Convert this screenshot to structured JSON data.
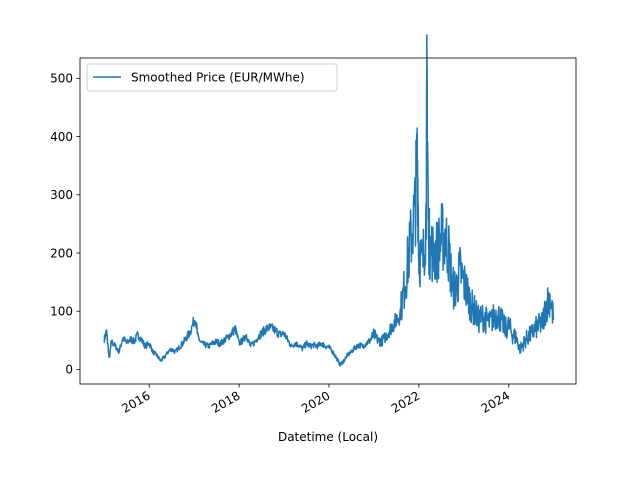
{
  "chart_data": {
    "type": "line",
    "xlabel": "Datetime (Local)",
    "ylabel": "",
    "x_ticks": [
      "2016",
      "2018",
      "2020",
      "2022",
      "2024"
    ],
    "y_ticks": [
      "0",
      "100",
      "200",
      "300",
      "400",
      "500"
    ],
    "xlim": [
      "2014-06-18",
      "2025-07-01"
    ],
    "ylim": [
      -25,
      535
    ],
    "legend_position": "top-left",
    "grid": false,
    "series": [
      {
        "name": "Smoothed Price (EUR/MWhe)",
        "color": "#1f77b4",
        "points": [
          [
            "2015-01-01",
            52
          ],
          [
            "2015-01-20",
            65
          ],
          [
            "2015-02-10",
            18
          ],
          [
            "2015-03-01",
            48
          ],
          [
            "2015-04-01",
            40
          ],
          [
            "2015-05-01",
            30
          ],
          [
            "2015-06-01",
            55
          ],
          [
            "2015-07-01",
            45
          ],
          [
            "2015-08-01",
            52
          ],
          [
            "2015-09-01",
            48
          ],
          [
            "2015-10-01",
            60
          ],
          [
            "2015-11-01",
            50
          ],
          [
            "2015-12-01",
            40
          ],
          [
            "2016-01-01",
            45
          ],
          [
            "2016-02-01",
            30
          ],
          [
            "2016-03-01",
            25
          ],
          [
            "2016-04-01",
            15
          ],
          [
            "2016-05-01",
            20
          ],
          [
            "2016-06-01",
            30
          ],
          [
            "2016-07-01",
            35
          ],
          [
            "2016-08-01",
            30
          ],
          [
            "2016-09-01",
            38
          ],
          [
            "2016-10-01",
            45
          ],
          [
            "2016-11-01",
            55
          ],
          [
            "2016-12-01",
            65
          ],
          [
            "2017-01-10",
            90
          ],
          [
            "2017-02-01",
            55
          ],
          [
            "2017-03-01",
            45
          ],
          [
            "2017-04-01",
            42
          ],
          [
            "2017-05-01",
            40
          ],
          [
            "2017-06-01",
            45
          ],
          [
            "2017-07-01",
            48
          ],
          [
            "2017-08-01",
            44
          ],
          [
            "2017-09-01",
            50
          ],
          [
            "2017-10-01",
            55
          ],
          [
            "2017-11-01",
            62
          ],
          [
            "2017-12-01",
            70
          ],
          [
            "2018-01-01",
            45
          ],
          [
            "2018-02-01",
            50
          ],
          [
            "2018-03-01",
            60
          ],
          [
            "2018-04-01",
            40
          ],
          [
            "2018-05-01",
            45
          ],
          [
            "2018-06-01",
            55
          ],
          [
            "2018-07-01",
            62
          ],
          [
            "2018-08-01",
            68
          ],
          [
            "2018-09-01",
            72
          ],
          [
            "2018-10-01",
            70
          ],
          [
            "2018-11-01",
            65
          ],
          [
            "2018-12-01",
            60
          ],
          [
            "2019-01-01",
            62
          ],
          [
            "2019-02-01",
            50
          ],
          [
            "2019-03-01",
            40
          ],
          [
            "2019-04-01",
            45
          ],
          [
            "2019-05-01",
            42
          ],
          [
            "2019-06-01",
            35
          ],
          [
            "2019-07-01",
            45
          ],
          [
            "2019-08-01",
            40
          ],
          [
            "2019-09-01",
            42
          ],
          [
            "2019-10-01",
            40
          ],
          [
            "2019-11-01",
            45
          ],
          [
            "2019-12-01",
            40
          ],
          [
            "2020-01-01",
            38
          ],
          [
            "2020-02-01",
            30
          ],
          [
            "2020-03-01",
            20
          ],
          [
            "2020-04-01",
            8
          ],
          [
            "2020-05-01",
            15
          ],
          [
            "2020-06-01",
            25
          ],
          [
            "2020-07-01",
            30
          ],
          [
            "2020-08-01",
            38
          ],
          [
            "2020-09-01",
            42
          ],
          [
            "2020-10-01",
            40
          ],
          [
            "2020-11-01",
            45
          ],
          [
            "2020-12-01",
            50
          ],
          [
            "2021-01-01",
            60
          ],
          [
            "2021-02-01",
            50
          ],
          [
            "2021-03-01",
            48
          ],
          [
            "2021-04-01",
            55
          ],
          [
            "2021-05-01",
            65
          ],
          [
            "2021-06-01",
            75
          ],
          [
            "2021-07-01",
            85
          ],
          [
            "2021-08-01",
            95
          ],
          [
            "2021-09-01",
            135
          ],
          [
            "2021-10-01",
            180
          ],
          [
            "2021-11-01",
            230
          ],
          [
            "2021-12-01",
            275
          ],
          [
            "2021-12-20",
            370
          ],
          [
            "2022-01-01",
            200
          ],
          [
            "2022-02-01",
            180
          ],
          [
            "2022-03-01",
            260
          ],
          [
            "2022-03-08",
            510
          ],
          [
            "2022-03-20",
            230
          ],
          [
            "2022-04-01",
            210
          ],
          [
            "2022-05-01",
            200
          ],
          [
            "2022-06-01",
            205
          ],
          [
            "2022-07-01",
            225
          ],
          [
            "2022-08-01",
            230
          ],
          [
            "2022-09-01",
            200
          ],
          [
            "2022-10-01",
            140
          ],
          [
            "2022-11-01",
            140
          ],
          [
            "2022-12-01",
            170
          ],
          [
            "2023-01-01",
            150
          ],
          [
            "2023-02-01",
            130
          ],
          [
            "2023-03-01",
            110
          ],
          [
            "2023-04-01",
            100
          ],
          [
            "2023-05-01",
            85
          ],
          [
            "2023-06-01",
            90
          ],
          [
            "2023-07-01",
            85
          ],
          [
            "2023-08-01",
            80
          ],
          [
            "2023-09-01",
            90
          ],
          [
            "2023-10-01",
            95
          ],
          [
            "2023-11-01",
            85
          ],
          [
            "2023-12-01",
            70
          ],
          [
            "2024-01-01",
            75
          ],
          [
            "2024-02-01",
            60
          ],
          [
            "2024-03-01",
            55
          ],
          [
            "2024-04-01",
            35
          ],
          [
            "2024-05-01",
            45
          ],
          [
            "2024-06-01",
            55
          ],
          [
            "2024-07-01",
            60
          ],
          [
            "2024-08-01",
            70
          ],
          [
            "2024-09-01",
            75
          ],
          [
            "2024-10-01",
            80
          ],
          [
            "2024-11-01",
            110
          ],
          [
            "2024-12-01",
            125
          ],
          [
            "2024-12-31",
            85
          ]
        ]
      }
    ]
  }
}
